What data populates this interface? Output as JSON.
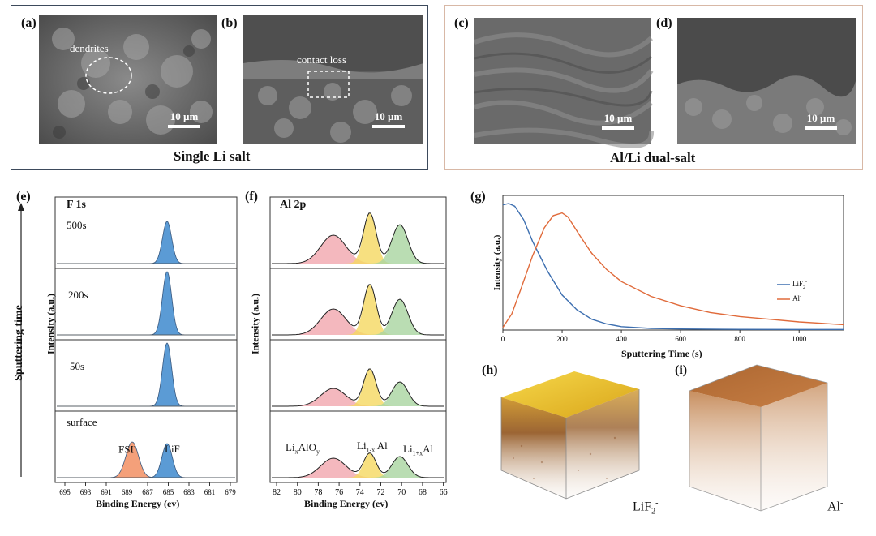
{
  "top": {
    "labels": {
      "a": "(a)",
      "b": "(b)",
      "c": "(c)",
      "d": "(d)"
    },
    "group_left_caption": "Single Li salt",
    "group_right_caption": "Al/Li dual-salt",
    "annotations": {
      "dendrites": "dendrites",
      "contact_loss": "contact loss"
    },
    "scale_bar_text": "10 µm"
  },
  "panel_e": {
    "label": "(e)",
    "title": "F 1s",
    "ylabel": "Intensity (a.u.)",
    "side_label": "Sputtering time",
    "rows": [
      "500s",
      "200s",
      "50s",
      "surface"
    ],
    "peak_labels": {
      "fsi": "FSI",
      "fsi_sup": "-",
      "lif": "LiF"
    },
    "xlabel": "Binding Energy (ev)",
    "xticks": [
      "695",
      "693",
      "691",
      "689",
      "687",
      "685",
      "683",
      "681",
      "679"
    ]
  },
  "panel_f": {
    "label": "(f)",
    "title": "Al 2p",
    "ylabel": "Intensity (a.u.)",
    "peak_labels": {
      "a1": "Li",
      "a1s": "x",
      "a2": "AlO",
      "a2s": "y",
      "b1": "Li",
      "b1s": "1-x",
      "b2": " Al",
      "c1": "Li",
      "c1s": "1+x",
      "c2": "Al"
    },
    "xlabel": "Binding Energy (ev)",
    "xticks": [
      "82",
      "80",
      "78",
      "76",
      "74",
      "72",
      "70",
      "68",
      "66"
    ]
  },
  "panel_g": {
    "label": "(g)",
    "ylabel": "Intensity (a.u.)",
    "xlabel": "Sputtering Time (s)",
    "xticks": [
      "0",
      "200",
      "400",
      "600",
      "800",
      "1000"
    ],
    "legend": [
      {
        "name": "LiF",
        "sub": "2",
        "sup": "-",
        "color": "#3d6fb0"
      },
      {
        "name": "Al",
        "sub": "",
        "sup": "-",
        "color": "#e06a3a"
      }
    ],
    "chart_data": {
      "type": "line",
      "xlim": [
        0,
        1150
      ],
      "series": [
        {
          "name": "LiF2-",
          "x": [
            0,
            20,
            40,
            70,
            100,
            150,
            200,
            250,
            300,
            350,
            400,
            500,
            600,
            800,
            1000,
            1150
          ],
          "y": [
            0.93,
            0.94,
            0.92,
            0.82,
            0.66,
            0.44,
            0.26,
            0.15,
            0.08,
            0.045,
            0.025,
            0.012,
            0.008,
            0.005,
            0.004,
            0.004
          ]
        },
        {
          "name": "Al-",
          "x": [
            0,
            30,
            60,
            100,
            140,
            170,
            200,
            220,
            260,
            300,
            350,
            400,
            500,
            600,
            700,
            800,
            900,
            1000,
            1150
          ],
          "y": [
            0.02,
            0.12,
            0.3,
            0.55,
            0.76,
            0.85,
            0.87,
            0.84,
            0.7,
            0.57,
            0.45,
            0.36,
            0.25,
            0.18,
            0.13,
            0.1,
            0.08,
            0.06,
            0.04
          ]
        }
      ]
    }
  },
  "panel_h": {
    "label": "(h)",
    "species": "LiF",
    "species_sub": "2",
    "species_sup": "-"
  },
  "panel_i": {
    "label": "(i)",
    "species": "Al",
    "species_sup": "-"
  }
}
